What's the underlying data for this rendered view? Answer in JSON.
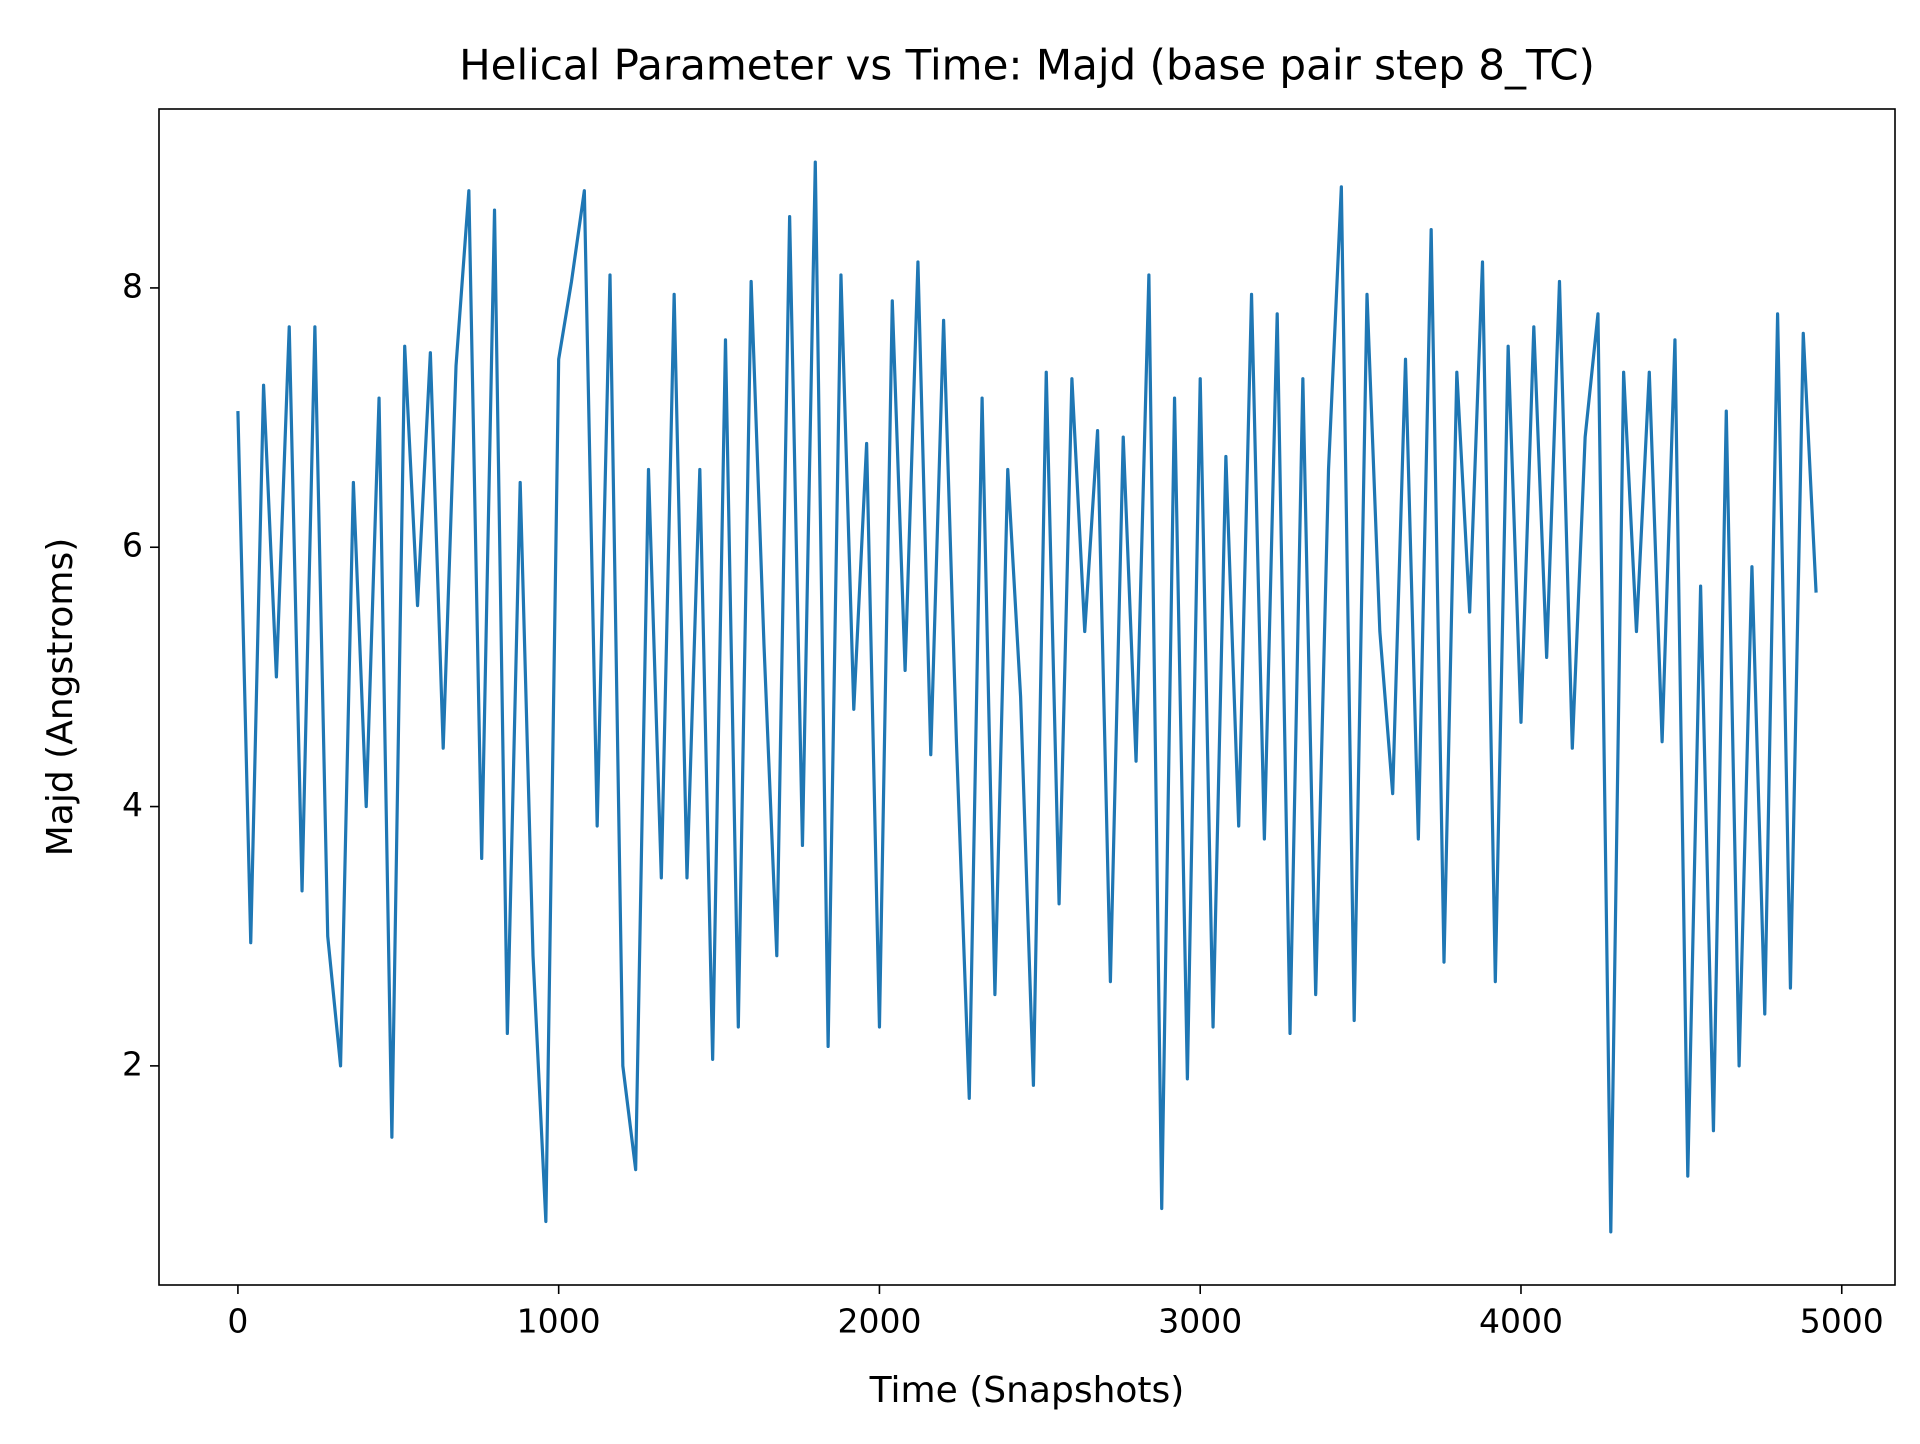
{
  "chart_data": {
    "type": "line",
    "title": "Helical Parameter vs Time: Majd (base pair step 8_TC)",
    "x_label": "Time (Snapshots)",
    "y_label": "Majd (Angstroms)",
    "color": "#1f77b4",
    "x": [
      0,
      40,
      80,
      120,
      160,
      200,
      240,
      280,
      320,
      360,
      400,
      440,
      480,
      520,
      560,
      600,
      640,
      680,
      720,
      760,
      800,
      840,
      880,
      920,
      960,
      1000,
      1040,
      1080,
      1120,
      1160,
      1200,
      1240,
      1280,
      1320,
      1360,
      1400,
      1440,
      1480,
      1520,
      1560,
      1600,
      1640,
      1680,
      1720,
      1760,
      1800,
      1840,
      1880,
      1920,
      1960,
      2000,
      2040,
      2080,
      2120,
      2160,
      2200,
      2240,
      2280,
      2320,
      2360,
      2400,
      2440,
      2480,
      2520,
      2560,
      2600,
      2640,
      2680,
      2720,
      2760,
      2800,
      2840,
      2880,
      2920,
      2960,
      3000,
      3040,
      3080,
      3120,
      3160,
      3200,
      3240,
      3280,
      3320,
      3360,
      3400,
      3440,
      3480,
      3520,
      3560,
      3600,
      3640,
      3680,
      3720,
      3760,
      3800,
      3840,
      3880,
      3920,
      3960,
      4000,
      4040,
      4080,
      4120,
      4160,
      4200,
      4240,
      4280,
      4320,
      4360,
      4400,
      4440,
      4480,
      4520,
      4560,
      4600,
      4640,
      4680,
      4720,
      4760,
      4800,
      4840,
      4880,
      4920
    ],
    "values": [
      7.05,
      2.95,
      7.25,
      5.0,
      7.7,
      3.35,
      7.7,
      3.0,
      2.0,
      6.5,
      4.0,
      7.15,
      1.45,
      7.55,
      5.55,
      7.5,
      4.45,
      7.4,
      8.75,
      3.6,
      8.6,
      2.25,
      6.5,
      2.85,
      0.8,
      7.45,
      8.05,
      8.75,
      3.85,
      8.1,
      2.0,
      1.2,
      6.6,
      3.45,
      7.95,
      3.45,
      6.6,
      2.05,
      7.6,
      2.3,
      8.05,
      5.25,
      2.85,
      8.55,
      3.7,
      8.97,
      2.15,
      8.1,
      4.75,
      6.8,
      2.3,
      7.9,
      5.05,
      8.2,
      4.4,
      7.75,
      4.5,
      1.75,
      7.15,
      2.55,
      6.6,
      4.85,
      1.85,
      7.35,
      3.25,
      7.3,
      5.35,
      6.9,
      2.65,
      6.85,
      4.35,
      8.1,
      0.9,
      7.15,
      1.9,
      7.3,
      2.3,
      6.7,
      3.85,
      7.95,
      3.75,
      7.8,
      2.25,
      7.3,
      2.55,
      6.6,
      8.78,
      2.35,
      7.95,
      5.35,
      4.1,
      7.45,
      3.75,
      8.45,
      2.8,
      7.35,
      5.5,
      8.2,
      2.65,
      7.55,
      4.65,
      7.7,
      5.15,
      8.05,
      4.45,
      6.85,
      7.8,
      0.72,
      7.35,
      5.35,
      7.35,
      4.5,
      7.6,
      1.15,
      5.7,
      1.5,
      7.05,
      2.0,
      5.85,
      2.4,
      7.8,
      2.6,
      7.65,
      5.65
    ],
    "xlim": [
      -246,
      5166
    ],
    "ylim": [
      0.31,
      9.38
    ],
    "xticks": [
      0,
      1000,
      2000,
      3000,
      4000,
      5000
    ],
    "yticks": [
      2,
      4,
      6,
      8
    ]
  }
}
